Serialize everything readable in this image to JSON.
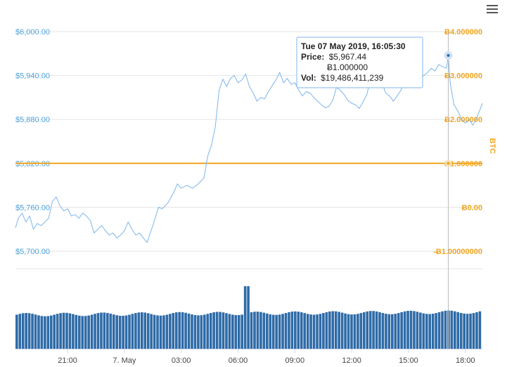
{
  "chart_data": {
    "type": "line",
    "x_ticks": [
      "21:00",
      "7. May",
      "03:00",
      "06:00",
      "09:00",
      "12:00",
      "15:00",
      "18:00"
    ],
    "left_axis": {
      "ticks": [
        "$6,000.00",
        "$5,940.00",
        "$5,880.00",
        "$5,820.00",
        "$5,760.00",
        "$5,700.00"
      ],
      "ylim": [
        5700,
        6000
      ]
    },
    "right_axis": {
      "label": "BTC",
      "ticks": [
        "Ƀ4.000000",
        "Ƀ3.000000",
        "Ƀ2.000000",
        "Ƀ1.000000",
        "Ƀ0.00",
        "-Ƀ1.00000000"
      ],
      "ylim": [
        -1,
        4
      ]
    },
    "x_range_hours": [
      18.25,
      42.9
    ],
    "price_series": {
      "color": "#7cb5ec",
      "points": [
        [
          18.25,
          5732
        ],
        [
          18.4,
          5745
        ],
        [
          18.6,
          5752
        ],
        [
          18.8,
          5740
        ],
        [
          19.0,
          5748
        ],
        [
          19.2,
          5730
        ],
        [
          19.4,
          5738
        ],
        [
          19.6,
          5735
        ],
        [
          19.8,
          5740
        ],
        [
          20.0,
          5745
        ],
        [
          20.2,
          5768
        ],
        [
          20.4,
          5774
        ],
        [
          20.6,
          5762
        ],
        [
          20.8,
          5755
        ],
        [
          21.0,
          5758
        ],
        [
          21.2,
          5748
        ],
        [
          21.4,
          5750
        ],
        [
          21.6,
          5745
        ],
        [
          21.8,
          5752
        ],
        [
          22.0,
          5748
        ],
        [
          22.2,
          5742
        ],
        [
          22.4,
          5725
        ],
        [
          22.6,
          5730
        ],
        [
          22.8,
          5735
        ],
        [
          23.0,
          5728
        ],
        [
          23.2,
          5722
        ],
        [
          23.4,
          5725
        ],
        [
          23.6,
          5718
        ],
        [
          23.8,
          5722
        ],
        [
          24.0,
          5728
        ],
        [
          24.2,
          5740
        ],
        [
          24.4,
          5730
        ],
        [
          24.6,
          5722
        ],
        [
          24.8,
          5725
        ],
        [
          25.0,
          5718
        ],
        [
          25.2,
          5712
        ],
        [
          25.5,
          5735
        ],
        [
          25.8,
          5760
        ],
        [
          26.0,
          5758
        ],
        [
          26.3,
          5766
        ],
        [
          26.6,
          5780
        ],
        [
          26.8,
          5792
        ],
        [
          27.0,
          5786
        ],
        [
          27.3,
          5790
        ],
        [
          27.6,
          5786
        ],
        [
          27.9,
          5792
        ],
        [
          28.2,
          5800
        ],
        [
          28.4,
          5830
        ],
        [
          28.6,
          5845
        ],
        [
          28.8,
          5870
        ],
        [
          29.0,
          5920
        ],
        [
          29.2,
          5935
        ],
        [
          29.4,
          5925
        ],
        [
          29.6,
          5936
        ],
        [
          29.8,
          5940
        ],
        [
          30.0,
          5930
        ],
        [
          30.2,
          5934
        ],
        [
          30.4,
          5942
        ],
        [
          30.6,
          5925
        ],
        [
          30.8,
          5916
        ],
        [
          31.0,
          5905
        ],
        [
          31.2,
          5910
        ],
        [
          31.4,
          5908
        ],
        [
          31.6,
          5918
        ],
        [
          31.8,
          5926
        ],
        [
          32.0,
          5934
        ],
        [
          32.2,
          5944
        ],
        [
          32.4,
          5930
        ],
        [
          32.6,
          5936
        ],
        [
          32.8,
          5928
        ],
        [
          33.0,
          5930
        ],
        [
          33.2,
          5920
        ],
        [
          33.4,
          5912
        ],
        [
          33.6,
          5918
        ],
        [
          33.8,
          5916
        ],
        [
          34.0,
          5910
        ],
        [
          34.2,
          5905
        ],
        [
          34.4,
          5900
        ],
        [
          34.6,
          5896
        ],
        [
          34.8,
          5898
        ],
        [
          35.0,
          5906
        ],
        [
          35.2,
          5924
        ],
        [
          35.4,
          5920
        ],
        [
          35.6,
          5914
        ],
        [
          35.8,
          5906
        ],
        [
          36.0,
          5902
        ],
        [
          36.2,
          5900
        ],
        [
          36.4,
          5895
        ],
        [
          36.6,
          5904
        ],
        [
          36.8,
          5914
        ],
        [
          37.0,
          5936
        ],
        [
          37.2,
          5932
        ],
        [
          37.4,
          5926
        ],
        [
          37.6,
          5930
        ],
        [
          37.8,
          5916
        ],
        [
          38.0,
          5912
        ],
        [
          38.2,
          5905
        ],
        [
          38.4,
          5912
        ],
        [
          38.6,
          5920
        ],
        [
          38.8,
          5936
        ],
        [
          39.0,
          5938
        ],
        [
          39.2,
          5928
        ],
        [
          39.4,
          5930
        ],
        [
          39.6,
          5935
        ],
        [
          39.8,
          5940
        ],
        [
          40.0,
          5944
        ],
        [
          40.2,
          5950
        ],
        [
          40.4,
          5946
        ],
        [
          40.6,
          5955
        ],
        [
          40.8,
          5952
        ],
        [
          41.0,
          5950
        ],
        [
          41.1,
          5967.44
        ],
        [
          41.2,
          5930
        ],
        [
          41.4,
          5900
        ],
        [
          41.6,
          5892
        ],
        [
          41.8,
          5880
        ],
        [
          42.0,
          5875
        ],
        [
          42.2,
          5880
        ],
        [
          42.4,
          5872
        ],
        [
          42.6,
          5882
        ],
        [
          42.8,
          5895
        ],
        [
          42.9,
          5902
        ]
      ]
    },
    "btc_series": {
      "color": "#f0a520",
      "value": 1.0
    },
    "volume_series": {
      "color": "#2f6ba7",
      "base": 0.5,
      "spike_hour": 30.45,
      "spike_value": 0.92
    },
    "tooltip": {
      "hour": 41.1,
      "date": "Tue 07 May 2019, 16:05:30",
      "price_label": "Price:",
      "price": "$5,967.44",
      "btc": "Ƀ1.000000",
      "vol_label": "Vol:",
      "vol": "$19,486,411,239"
    }
  },
  "menu": {
    "icon": "hamburger-menu-icon"
  }
}
